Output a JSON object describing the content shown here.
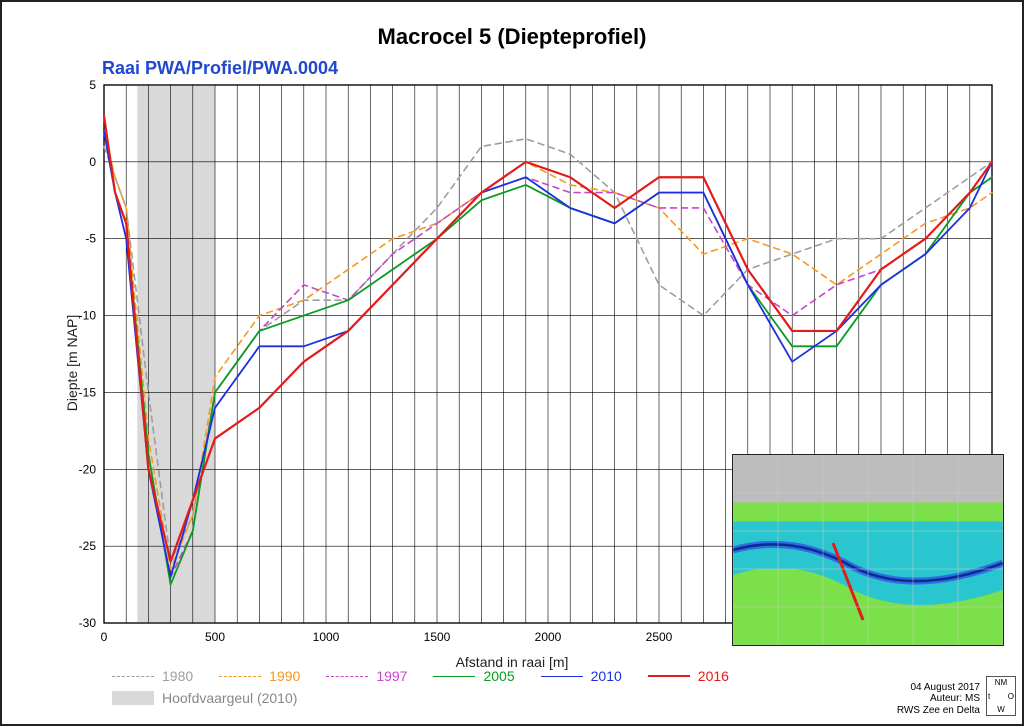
{
  "title": "Macrocel 5 (Diepteprofiel)",
  "subtitle": "Raai PWA/Profiel/PWA.0004",
  "axes": {
    "xlabel": "Afstand in raai [m]",
    "ylabel": "Diepte [m NAP]",
    "xlim": [
      0,
      4000
    ],
    "ylim": [
      -30,
      5
    ],
    "xtick_step": 500,
    "ytick_step": 5,
    "xtick_minor": 100,
    "grid_color": "#000000",
    "grid_width": 0.6,
    "plot_bg": "#ffffff",
    "tick_fontsize": 12,
    "label_fontsize": 14
  },
  "shaded_band": {
    "label": "Hoofdvaargeul (2010)",
    "x_from": 150,
    "x_to": 500,
    "color": "#d9d9d9"
  },
  "series": [
    {
      "label": "1980",
      "color": "#9e9e9e",
      "dash": "6 5",
      "width": 1.6,
      "data": [
        [
          0,
          1
        ],
        [
          50,
          -1
        ],
        [
          100,
          -3
        ],
        [
          200,
          -15
        ],
        [
          300,
          -26
        ],
        [
          400,
          -23
        ],
        [
          500,
          -15
        ],
        [
          700,
          -11
        ],
        [
          900,
          -9
        ],
        [
          1100,
          -9
        ],
        [
          1300,
          -6
        ],
        [
          1500,
          -3
        ],
        [
          1700,
          1
        ],
        [
          1900,
          1.5
        ],
        [
          2100,
          0.5
        ],
        [
          2300,
          -2
        ],
        [
          2500,
          -8
        ],
        [
          2700,
          -10
        ],
        [
          2900,
          -7
        ],
        [
          3100,
          -6
        ],
        [
          3300,
          -5
        ],
        [
          3500,
          -5
        ],
        [
          3700,
          -3
        ],
        [
          3900,
          -1
        ],
        [
          4000,
          0
        ]
      ]
    },
    {
      "label": "1990",
      "color": "#F6991E",
      "dash": "6 5",
      "width": 1.6,
      "data": [
        [
          0,
          2
        ],
        [
          50,
          -1
        ],
        [
          100,
          -3
        ],
        [
          200,
          -18
        ],
        [
          300,
          -26.5
        ],
        [
          400,
          -23
        ],
        [
          500,
          -14
        ],
        [
          700,
          -10
        ],
        [
          900,
          -9
        ],
        [
          1100,
          -7
        ],
        [
          1300,
          -5
        ],
        [
          1500,
          -4
        ],
        [
          1700,
          -2
        ],
        [
          1900,
          0
        ],
        [
          2100,
          -1.5
        ],
        [
          2300,
          -2
        ],
        [
          2500,
          -3
        ],
        [
          2700,
          -6
        ],
        [
          2900,
          -5
        ],
        [
          3100,
          -6
        ],
        [
          3300,
          -8
        ],
        [
          3500,
          -6
        ],
        [
          3700,
          -4
        ],
        [
          3900,
          -3
        ],
        [
          4000,
          -2
        ]
      ]
    },
    {
      "label": "1997",
      "color": "#C846C8",
      "dash": "6 5",
      "width": 1.6,
      "data": [
        [
          0,
          2
        ],
        [
          50,
          -2
        ],
        [
          100,
          -4
        ],
        [
          200,
          -20
        ],
        [
          300,
          -27
        ],
        [
          400,
          -24
        ],
        [
          500,
          -15
        ],
        [
          700,
          -11
        ],
        [
          900,
          -8
        ],
        [
          1100,
          -9
        ],
        [
          1300,
          -6
        ],
        [
          1500,
          -4
        ],
        [
          1700,
          -2
        ],
        [
          1900,
          -1
        ],
        [
          2100,
          -2
        ],
        [
          2300,
          -2
        ],
        [
          2500,
          -3
        ],
        [
          2700,
          -3
        ],
        [
          2900,
          -8
        ],
        [
          3100,
          -10
        ],
        [
          3300,
          -8
        ],
        [
          3500,
          -7
        ],
        [
          3700,
          -5
        ],
        [
          3900,
          -2
        ],
        [
          4000,
          -1
        ]
      ]
    },
    {
      "label": "2005",
      "color": "#0A9B22",
      "dash": "none",
      "width": 1.8,
      "data": [
        [
          0,
          2
        ],
        [
          50,
          -2
        ],
        [
          100,
          -4
        ],
        [
          200,
          -19
        ],
        [
          300,
          -27.5
        ],
        [
          400,
          -24
        ],
        [
          500,
          -15
        ],
        [
          700,
          -11
        ],
        [
          900,
          -10
        ],
        [
          1100,
          -9
        ],
        [
          1300,
          -7
        ],
        [
          1500,
          -5
        ],
        [
          1700,
          -2.5
        ],
        [
          1900,
          -1.5
        ],
        [
          2100,
          -3
        ],
        [
          2300,
          -4
        ],
        [
          2500,
          -2
        ],
        [
          2700,
          -2
        ],
        [
          2900,
          -8
        ],
        [
          3100,
          -12
        ],
        [
          3300,
          -12
        ],
        [
          3500,
          -8
        ],
        [
          3700,
          -6
        ],
        [
          3900,
          -2
        ],
        [
          4000,
          -1
        ]
      ]
    },
    {
      "label": "2010",
      "color": "#1F2FE0",
      "dash": "none",
      "width": 1.8,
      "data": [
        [
          0,
          2
        ],
        [
          50,
          -2
        ],
        [
          100,
          -5
        ],
        [
          200,
          -20
        ],
        [
          300,
          -27
        ],
        [
          400,
          -22
        ],
        [
          500,
          -16
        ],
        [
          700,
          -12
        ],
        [
          900,
          -12
        ],
        [
          1100,
          -11
        ],
        [
          1300,
          -8
        ],
        [
          1500,
          -5
        ],
        [
          1700,
          -2
        ],
        [
          1900,
          -1
        ],
        [
          2100,
          -3
        ],
        [
          2300,
          -4
        ],
        [
          2500,
          -2
        ],
        [
          2700,
          -2
        ],
        [
          2900,
          -8
        ],
        [
          3100,
          -13
        ],
        [
          3300,
          -11
        ],
        [
          3500,
          -8
        ],
        [
          3700,
          -6
        ],
        [
          3900,
          -3
        ],
        [
          4000,
          0
        ]
      ]
    },
    {
      "label": "2016",
      "color": "#E31B1B",
      "dash": "none",
      "width": 2.2,
      "data": [
        [
          0,
          3
        ],
        [
          50,
          -2
        ],
        [
          100,
          -4
        ],
        [
          200,
          -20
        ],
        [
          300,
          -26
        ],
        [
          400,
          -22
        ],
        [
          500,
          -18
        ],
        [
          700,
          -16
        ],
        [
          900,
          -13
        ],
        [
          1100,
          -11
        ],
        [
          1300,
          -8
        ],
        [
          1500,
          -5
        ],
        [
          1700,
          -2
        ],
        [
          1900,
          0
        ],
        [
          2100,
          -1
        ],
        [
          2300,
          -3
        ],
        [
          2500,
          -1
        ],
        [
          2700,
          -1
        ],
        [
          2900,
          -7
        ],
        [
          3100,
          -11
        ],
        [
          3300,
          -11
        ],
        [
          3500,
          -7
        ],
        [
          3700,
          -5
        ],
        [
          3900,
          -2
        ],
        [
          4000,
          0
        ]
      ]
    }
  ],
  "meta": {
    "date": "04 August 2017",
    "author": "Auteur: MS",
    "org": "RWS Zee en Delta"
  },
  "compass": {
    "n": "NM",
    "s": "W",
    "e": "O",
    "w": "t"
  },
  "inset_map": {
    "border": "#222222",
    "land_color": "#bdbdbd",
    "shallow_color": "#7BE04A",
    "channel_color": "#2AC6CF",
    "deep_channel": "#2F6BE6",
    "transect_color": "#E31B1B"
  }
}
